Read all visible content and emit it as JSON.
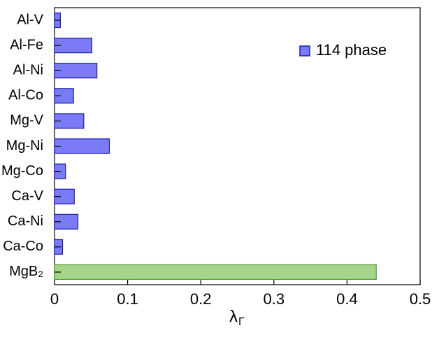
{
  "chart_data": {
    "type": "hbar",
    "categories": [
      "Al-V",
      "Al-Fe",
      "Al-Ni",
      "Al-Co",
      "Mg-V",
      "Mg-Ni",
      "Mg-Co",
      "Ca-V",
      "Ca-Ni",
      "Ca-Co",
      "MgB₂"
    ],
    "series": [
      {
        "name": "114 phase",
        "color": "#7b7bf7",
        "edge": "#1a1ab0",
        "values": [
          0.008,
          0.051,
          0.058,
          0.026,
          0.04,
          0.075,
          0.015,
          0.027,
          0.032,
          0.011,
          null
        ]
      },
      {
        "color": "#a6d48a",
        "edge": "#4f9a2a",
        "values": [
          null,
          null,
          null,
          null,
          null,
          null,
          null,
          null,
          null,
          null,
          0.44
        ]
      }
    ],
    "xlabel": "λ",
    "xlabel_sub": "Γ",
    "xlim": [
      0,
      0.5
    ],
    "xticks": [
      0,
      0.1,
      0.2,
      0.3,
      0.4,
      0.5
    ],
    "legend": "upper-right"
  }
}
